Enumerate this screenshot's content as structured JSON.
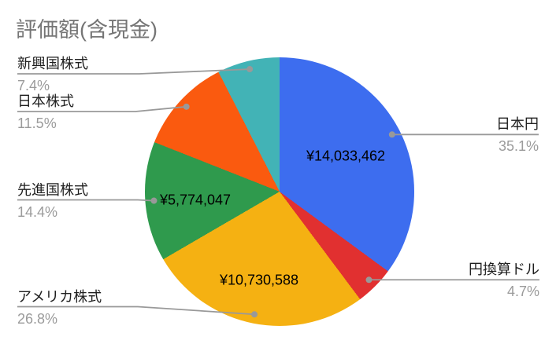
{
  "title": "評価額(含現金)",
  "chart_data": {
    "type": "pie",
    "title": "評価額(含現金)",
    "currency": "JPY",
    "start_angle_deg": 0,
    "direction": "clockwise",
    "legend_position": "outside-callouts-with-leader-lines",
    "background": "#ffffff",
    "segments": [
      {
        "label": "日本円",
        "percent": 35.1,
        "percent_label": "35.1%",
        "value_label": "¥14,033,462",
        "color": "#3d6def",
        "callout_side": "right"
      },
      {
        "label": "円換算ドル",
        "percent": 4.7,
        "percent_label": "4.7%",
        "value_label": null,
        "color": "#e13030",
        "callout_side": "right"
      },
      {
        "label": "アメリカ株式",
        "percent": 26.8,
        "percent_label": "26.8%",
        "value_label": "¥10,730,588",
        "color": "#f5b112",
        "callout_side": "left"
      },
      {
        "label": "先進国株式",
        "percent": 14.4,
        "percent_label": "14.4%",
        "value_label": "¥5,774,047",
        "color": "#2f9a4d",
        "callout_side": "left"
      },
      {
        "label": "日本株式",
        "percent": 11.5,
        "percent_label": "11.5%",
        "value_label": null,
        "color": "#fa5a0f",
        "callout_side": "left"
      },
      {
        "label": "新興国株式",
        "percent": 7.4,
        "percent_label": "7.4%",
        "value_label": null,
        "color": "#42b3b6",
        "callout_side": "left"
      }
    ],
    "styles": {
      "title_color": "#757575",
      "label_color": "#1f1f1f",
      "percent_color": "#9b9b9b",
      "value_color": "#000000",
      "leader_line_color": "#999999"
    }
  }
}
